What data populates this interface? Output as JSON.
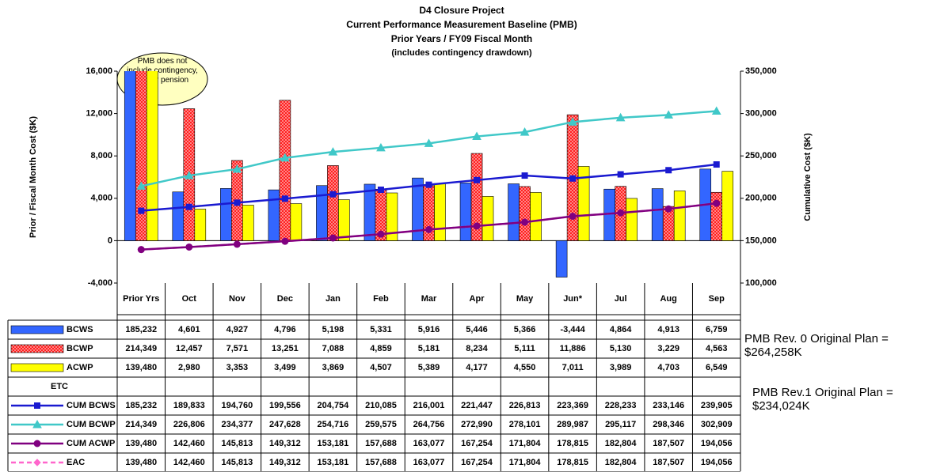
{
  "chart_data": {
    "type": "bar",
    "title": "D4 Closure Project",
    "subtitle": [
      "Current Performance Measurement Baseline (PMB)",
      "Prior Years / FY09 Fiscal Month",
      "(includes contingency drawdown)"
    ],
    "ylabel": "Prior / Fiscal Month Cost ($K)",
    "y2label": "Cumulative Cost ($K)",
    "annotations": [
      "PMB does not include contingency, fee, or pension",
      "PMB Rev. 0 Original Plan = $264,258K",
      "PMB Rev.1 Original Plan = $234,024K"
    ],
    "categories": [
      "Prior Yrs",
      "Oct",
      "Nov",
      "Dec",
      "Jan",
      "Feb",
      "Mar",
      "Apr",
      "May",
      "Jun*",
      "Jul",
      "Aug",
      "Sep"
    ],
    "ylim": [
      -4000,
      16000
    ],
    "yticks": [
      {
        "value": -4000,
        "label": "-4,000"
      },
      0,
      {
        "value": 4000,
        "label": "4,000"
      },
      {
        "value": 8000,
        "label": "8,000"
      },
      {
        "value": 12000,
        "label": "12,000"
      },
      {
        "value": 16000,
        "label": "16,000"
      }
    ],
    "y2lim": [
      100000,
      350000
    ],
    "y2ticks": [
      {
        "value": 100000,
        "label": "100,000"
      },
      {
        "value": 150000,
        "label": "150,000"
      },
      {
        "value": 200000,
        "label": "200,000"
      },
      {
        "value": 250000,
        "label": "250,000"
      },
      {
        "value": 300000,
        "label": "300,000"
      },
      {
        "value": 350000,
        "label": "350,000"
      }
    ],
    "series": [
      {
        "name": "BCWS",
        "type": "bar",
        "color": "#3366ff",
        "values": [
          185232,
          4601,
          4927,
          4796,
          5198,
          5331,
          5916,
          5446,
          5366,
          -3444,
          4864,
          4913,
          6759
        ],
        "value_labels": [
          "185,232",
          "4,601",
          "4,927",
          "4,796",
          "5,198",
          "5,331",
          "5,916",
          "5,446",
          "5,366",
          "-3,444",
          "4,864",
          "4,913",
          "6,759"
        ]
      },
      {
        "name": "BCWP",
        "type": "bar",
        "color": "#ff2020",
        "values": [
          214349,
          12457,
          7571,
          13251,
          7088,
          4859,
          5181,
          8234,
          5111,
          11886,
          5130,
          3229,
          4563
        ],
        "value_labels": [
          "214,349",
          "12,457",
          "7,571",
          "13,251",
          "7,088",
          "4,859",
          "5,181",
          "8,234",
          "5,111",
          "11,886",
          "5,130",
          "3,229",
          "4,563"
        ]
      },
      {
        "name": "ACWP",
        "type": "bar",
        "color": "#ffff00",
        "values": [
          139480,
          2980,
          3353,
          3499,
          3869,
          4507,
          5389,
          4177,
          4550,
          7011,
          3989,
          4703,
          6549
        ],
        "value_labels": [
          "139,480",
          "2,980",
          "3,353",
          "3,499",
          "3,869",
          "4,507",
          "5,389",
          "4,177",
          "4,550",
          "7,011",
          "3,989",
          "4,703",
          "6,549"
        ]
      },
      {
        "name": "ETC",
        "type": "none",
        "values": [
          null,
          null,
          null,
          null,
          null,
          null,
          null,
          null,
          null,
          null,
          null,
          null,
          null
        ]
      },
      {
        "name": "CUM BCWS",
        "type": "line",
        "axis": "y2",
        "color": "#1a1ad0",
        "marker": "square",
        "values": [
          185232,
          189833,
          194760,
          199556,
          204754,
          210085,
          216001,
          221447,
          226813,
          223369,
          228233,
          233146,
          239905
        ],
        "value_labels": [
          "185,232",
          "189,833",
          "194,760",
          "199,556",
          "204,754",
          "210,085",
          "216,001",
          "221,447",
          "226,813",
          "223,369",
          "228,233",
          "233,146",
          "239,905"
        ]
      },
      {
        "name": "CUM BCWP",
        "type": "line",
        "axis": "y2",
        "color": "#40c8c8",
        "marker": "triangle",
        "values": [
          214349,
          226806,
          234377,
          247628,
          254716,
          259575,
          264756,
          272990,
          278101,
          289987,
          295117,
          298346,
          302909
        ],
        "value_labels": [
          "214,349",
          "226,806",
          "234,377",
          "247,628",
          "254,716",
          "259,575",
          "264,756",
          "272,990",
          "278,101",
          "289,987",
          "295,117",
          "298,346",
          "302,909"
        ]
      },
      {
        "name": "CUM ACWP",
        "type": "line",
        "axis": "y2",
        "color": "#800080",
        "marker": "circle",
        "values": [
          139480,
          142460,
          145813,
          149312,
          153181,
          157688,
          163077,
          167254,
          171804,
          178815,
          182804,
          187507,
          194056
        ],
        "value_labels": [
          "139,480",
          "142,460",
          "145,813",
          "149,312",
          "153,181",
          "157,688",
          "163,077",
          "167,254",
          "171,804",
          "178,815",
          "182,804",
          "187,507",
          "194,056"
        ]
      },
      {
        "name": "EAC",
        "type": "line",
        "axis": "y2",
        "color": "#ff66cc",
        "marker": "diamond",
        "dashed": true,
        "values": [
          139480,
          142460,
          145813,
          149312,
          153181,
          157688,
          163077,
          167254,
          171804,
          178815,
          182804,
          187507,
          194056
        ],
        "value_labels": [
          "139,480",
          "142,460",
          "145,813",
          "149,312",
          "153,181",
          "157,688",
          "163,077",
          "167,254",
          "171,804",
          "178,815",
          "182,804",
          "187,507",
          "194,056"
        ]
      }
    ]
  }
}
